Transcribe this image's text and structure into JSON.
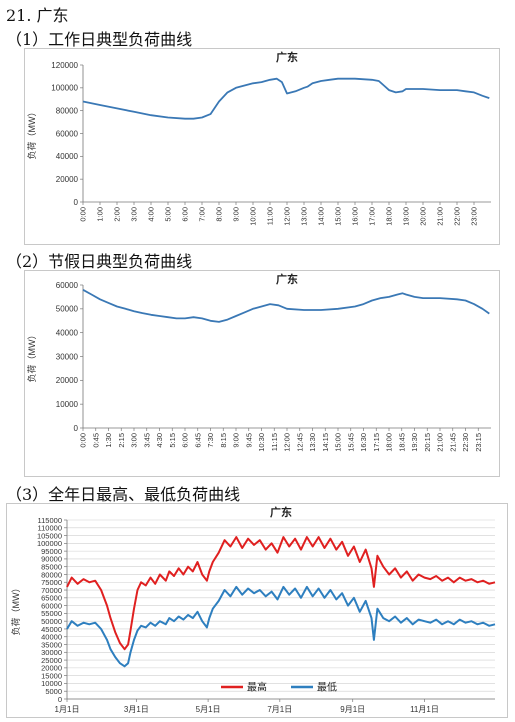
{
  "page": {
    "section_title": "21. 广东",
    "sub1": "（1）工作日典型负荷曲线",
    "sub2": "（2）节假日典型负荷曲线",
    "sub3": "（3）全年日最高、最低负荷曲线"
  },
  "chart_data": [
    {
      "type": "line",
      "title": "广东",
      "ylabel": "负荷（MW）",
      "ylim": [
        0,
        120000
      ],
      "yticks": [
        "0",
        "20000",
        "40000",
        "60000",
        "80000",
        "100000",
        "120000"
      ],
      "xticks": [
        "0:00",
        "1:00",
        "2:00",
        "3:00",
        "4:00",
        "5:00",
        "6:00",
        "7:00",
        "8:00",
        "9:00",
        "10:00",
        "11:00",
        "12:00",
        "13:00",
        "14:00",
        "15:00",
        "16:00",
        "17:00",
        "18:00",
        "19:00",
        "20:00",
        "21:00",
        "22:00",
        "23:00"
      ],
      "xrange": [
        0,
        24
      ],
      "color": "#3a78b5",
      "series": [
        {
          "x": [
            0,
            1,
            2,
            3,
            4,
            5,
            6,
            6.5,
            7,
            7.5,
            8,
            8.5,
            9,
            10,
            10.5,
            11,
            11.4,
            11.7,
            12,
            12.5,
            13,
            13.2,
            13.5,
            14,
            14.5,
            15,
            16,
            17,
            17.4,
            17.7,
            18,
            18.4,
            18.8,
            19,
            20,
            21,
            22,
            22.5,
            23,
            23.5,
            23.9
          ],
          "y": [
            88000,
            85000,
            82000,
            79000,
            76000,
            74000,
            73000,
            73000,
            74000,
            77000,
            88000,
            96000,
            100000,
            104000,
            105000,
            107000,
            108000,
            105000,
            95000,
            97000,
            100000,
            101000,
            104000,
            106000,
            107000,
            108000,
            108000,
            107000,
            106000,
            102000,
            98000,
            96000,
            97000,
            99000,
            99000,
            98000,
            98000,
            97000,
            96000,
            93000,
            91000
          ]
        }
      ]
    },
    {
      "type": "line",
      "title": "广东",
      "ylabel": "负荷（MW）",
      "ylim": [
        0,
        60000
      ],
      "yticks": [
        "0",
        "10000",
        "20000",
        "30000",
        "40000",
        "50000",
        "60000"
      ],
      "xticks": [
        "0:00",
        "0:45",
        "1:30",
        "2:15",
        "3:00",
        "3:45",
        "4:30",
        "5:15",
        "6:00",
        "6:45",
        "7:30",
        "8:15",
        "9:00",
        "9:45",
        "10:30",
        "11:15",
        "12:00",
        "12:45",
        "13:30",
        "14:15",
        "15:00",
        "15:45",
        "16:30",
        "17:15",
        "18:00",
        "18:45",
        "19:30",
        "20:15",
        "21:00",
        "21:45",
        "22:30",
        "23:15"
      ],
      "xrange": [
        0,
        24
      ],
      "color": "#3a78b5",
      "series": [
        {
          "x": [
            0,
            0.5,
            1,
            1.5,
            2,
            2.5,
            3,
            3.5,
            4,
            4.5,
            5,
            5.5,
            6,
            6.5,
            7,
            7.5,
            8,
            8.5,
            9,
            9.5,
            10,
            10.5,
            11,
            11.5,
            12,
            13,
            14,
            15,
            16,
            16.5,
            17,
            17.5,
            18,
            18.5,
            18.8,
            19,
            19.5,
            20,
            21,
            22,
            22.5,
            23,
            23.5,
            23.9
          ],
          "y": [
            58000,
            56000,
            54000,
            52500,
            51000,
            50000,
            49000,
            48200,
            47500,
            47000,
            46500,
            46000,
            46000,
            46500,
            46000,
            45000,
            44500,
            45500,
            47000,
            48500,
            50000,
            51000,
            52000,
            51500,
            50000,
            49500,
            49500,
            50000,
            51000,
            52000,
            53500,
            54500,
            55000,
            56000,
            56500,
            56000,
            55000,
            54500,
            54500,
            54000,
            53500,
            52000,
            50000,
            48000
          ]
        }
      ]
    },
    {
      "type": "line",
      "title": "广东",
      "ylabel": "负荷（MW）",
      "ylim": [
        0,
        115000
      ],
      "yticks": [
        "0",
        "5000",
        "10000",
        "15000",
        "20000",
        "25000",
        "30000",
        "35000",
        "40000",
        "45000",
        "50000",
        "55000",
        "60000",
        "65000",
        "70000",
        "75000",
        "80000",
        "85000",
        "90000",
        "95000",
        "100000",
        "105000",
        "110000",
        "115000"
      ],
      "xticks": [
        "1月1日",
        "3月1日",
        "5月1日",
        "7月1日",
        "9月1日",
        "11月1日"
      ],
      "xtick_days": [
        1,
        60,
        121,
        182,
        244,
        305
      ],
      "xrange": [
        1,
        365
      ],
      "legend": {
        "position": "bottom-center",
        "entries": [
          "最高",
          "最低"
        ]
      },
      "series": [
        {
          "name": "最高",
          "color": "#e02020",
          "x": [
            1,
            5,
            10,
            15,
            20,
            25,
            30,
            35,
            38,
            42,
            46,
            50,
            53,
            55,
            58,
            61,
            64,
            68,
            72,
            76,
            80,
            85,
            88,
            92,
            96,
            100,
            104,
            108,
            112,
            116,
            120,
            122,
            125,
            130,
            135,
            140,
            145,
            150,
            155,
            160,
            165,
            170,
            175,
            180,
            185,
            190,
            195,
            200,
            205,
            210,
            215,
            220,
            225,
            230,
            235,
            240,
            245,
            250,
            255,
            260,
            262,
            265,
            270,
            275,
            280,
            285,
            290,
            295,
            300,
            305,
            310,
            315,
            320,
            325,
            330,
            335,
            340,
            345,
            350,
            355,
            360,
            365
          ],
          "y": [
            72000,
            78000,
            74000,
            77000,
            75000,
            76000,
            70000,
            60000,
            52000,
            43000,
            36000,
            32000,
            35000,
            44000,
            58000,
            70000,
            75000,
            73000,
            78000,
            74000,
            80000,
            76000,
            82000,
            79000,
            84000,
            80000,
            85000,
            82000,
            88000,
            80000,
            76000,
            82000,
            88000,
            94000,
            102000,
            98000,
            104000,
            97000,
            103000,
            99000,
            102000,
            96000,
            100000,
            94000,
            104000,
            98000,
            103000,
            96000,
            104000,
            98000,
            104000,
            97000,
            103000,
            96000,
            101000,
            92000,
            98000,
            88000,
            96000,
            84000,
            72000,
            92000,
            85000,
            80000,
            84000,
            78000,
            82000,
            76000,
            80000,
            78000,
            77000,
            79000,
            76000,
            78000,
            75000,
            78000,
            76000,
            77000,
            75000,
            76000,
            74000,
            75000
          ]
        },
        {
          "name": "最低",
          "color": "#2e7fbf",
          "x": [
            1,
            5,
            10,
            15,
            20,
            25,
            30,
            35,
            38,
            42,
            46,
            50,
            53,
            55,
            58,
            61,
            64,
            68,
            72,
            76,
            80,
            85,
            88,
            92,
            96,
            100,
            104,
            108,
            112,
            116,
            120,
            122,
            125,
            130,
            135,
            140,
            145,
            150,
            155,
            160,
            165,
            170,
            175,
            180,
            185,
            190,
            195,
            200,
            205,
            210,
            215,
            220,
            225,
            230,
            235,
            240,
            245,
            250,
            255,
            260,
            262,
            265,
            270,
            275,
            280,
            285,
            290,
            295,
            300,
            305,
            310,
            315,
            320,
            325,
            330,
            335,
            340,
            345,
            350,
            355,
            360,
            365
          ],
          "y": [
            45000,
            50000,
            47000,
            49000,
            48000,
            49000,
            45000,
            38000,
            32000,
            27000,
            23000,
            21000,
            23000,
            30000,
            38000,
            44000,
            47000,
            46000,
            49000,
            47000,
            50000,
            48000,
            52000,
            50000,
            53000,
            51000,
            54000,
            52000,
            56000,
            50000,
            46000,
            52000,
            58000,
            63000,
            70000,
            66000,
            72000,
            67000,
            71000,
            68000,
            70000,
            66000,
            69000,
            64000,
            72000,
            67000,
            71000,
            65000,
            72000,
            66000,
            71000,
            65000,
            70000,
            64000,
            68000,
            60000,
            65000,
            56000,
            63000,
            52000,
            38000,
            58000,
            52000,
            50000,
            53000,
            49000,
            52000,
            48000,
            51000,
            50000,
            49000,
            51000,
            48000,
            50000,
            48000,
            51000,
            49000,
            50000,
            48000,
            49000,
            47000,
            48000
          ]
        }
      ]
    }
  ]
}
